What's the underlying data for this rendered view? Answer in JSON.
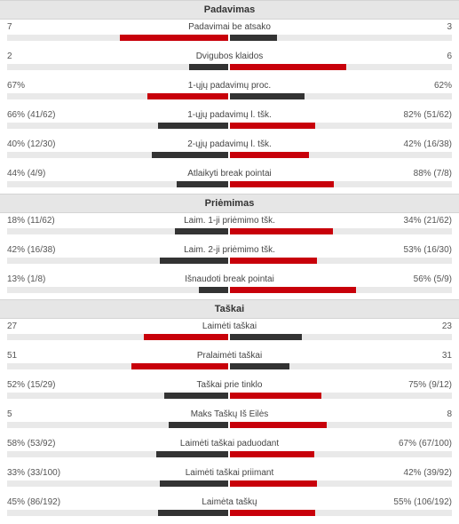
{
  "colors": {
    "winner": "#c8000a",
    "loser": "#333333"
  },
  "sections": [
    {
      "title": "Padavimas",
      "rows": [
        {
          "name": "Padavimai be atsako",
          "left": "7",
          "right": "3",
          "left_frac": 0.7,
          "right_frac": 0.3
        },
        {
          "name": "Dvigubos klaidos",
          "left": "2",
          "right": "6",
          "left_frac": 0.25,
          "right_frac": 0.75
        },
        {
          "name": "1-ųjų padavimų proc.",
          "left": "67%",
          "right": "62%",
          "left_frac": 0.52,
          "right_frac": 0.48
        },
        {
          "name": "1-ųjų padavimų l. tšk.",
          "left": "66% (41/62)",
          "right": "82% (51/62)",
          "left_frac": 0.45,
          "right_frac": 0.55
        },
        {
          "name": "2-ųjų padavimų l. tšk.",
          "left": "40% (12/30)",
          "right": "42% (16/38)",
          "left_frac": 0.49,
          "right_frac": 0.51
        },
        {
          "name": "Atlaikyti break pointai",
          "left": "44% (4/9)",
          "right": "88% (7/8)",
          "left_frac": 0.33,
          "right_frac": 0.67
        }
      ]
    },
    {
      "title": "Priėmimas",
      "rows": [
        {
          "name": "Laim. 1-ji priėmimo tšk.",
          "left": "18% (11/62)",
          "right": "34% (21/62)",
          "left_frac": 0.34,
          "right_frac": 0.66
        },
        {
          "name": "Laim. 2-ji priėmimo tšk.",
          "left": "42% (16/38)",
          "right": "53% (16/30)",
          "left_frac": 0.44,
          "right_frac": 0.56
        },
        {
          "name": "Išnaudoti break pointai",
          "left": "13% (1/8)",
          "right": "56% (5/9)",
          "left_frac": 0.19,
          "right_frac": 0.81
        }
      ]
    },
    {
      "title": "Taškai",
      "rows": [
        {
          "name": "Laimėti taškai",
          "left": "27",
          "right": "23",
          "left_frac": 0.54,
          "right_frac": 0.46
        },
        {
          "name": "Pralaimėti taškai",
          "left": "51",
          "right": "31",
          "left_frac": 0.62,
          "right_frac": 0.38
        },
        {
          "name": "Taškai prie tinklo",
          "left": "52% (15/29)",
          "right": "75% (9/12)",
          "left_frac": 0.41,
          "right_frac": 0.59
        },
        {
          "name": "Maks Taškų Iš Eilės",
          "left": "5",
          "right": "8",
          "left_frac": 0.38,
          "right_frac": 0.62
        },
        {
          "name": "Laimėti taškai paduodant",
          "left": "58% (53/92)",
          "right": "67% (67/100)",
          "left_frac": 0.46,
          "right_frac": 0.54
        },
        {
          "name": "Laimėti taškai priimant",
          "left": "33% (33/100)",
          "right": "42% (39/92)",
          "left_frac": 0.44,
          "right_frac": 0.56
        },
        {
          "name": "Laimėta taškų",
          "left": "45% (86/192)",
          "right": "55% (106/192)",
          "left_frac": 0.45,
          "right_frac": 0.55
        }
      ]
    }
  ]
}
